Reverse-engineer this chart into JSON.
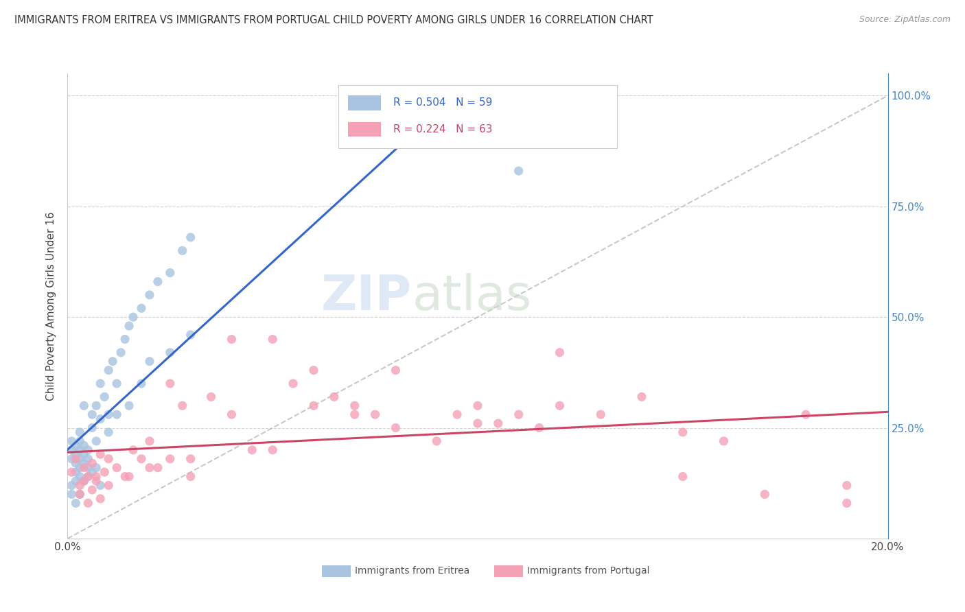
{
  "title": "IMMIGRANTS FROM ERITREA VS IMMIGRANTS FROM PORTUGAL CHILD POVERTY AMONG GIRLS UNDER 16 CORRELATION CHART",
  "source": "Source: ZipAtlas.com",
  "ylabel": "Child Poverty Among Girls Under 16",
  "xlim": [
    0.0,
    0.2
  ],
  "ylim": [
    0.0,
    1.05
  ],
  "background_color": "#ffffff",
  "grid_color": "#d0d0d0",
  "eritrea_color": "#a8c4e0",
  "eritrea_line_color": "#3366cc",
  "portugal_color": "#f4a0b5",
  "portugal_line_color": "#cc4466",
  "eritrea_R": 0.504,
  "eritrea_N": 59,
  "portugal_R": 0.224,
  "portugal_N": 63,
  "watermark_zip": "ZIP",
  "watermark_atlas": "atlas",
  "eritrea_x": [
    0.001,
    0.001,
    0.001,
    0.002,
    0.002,
    0.002,
    0.002,
    0.003,
    0.003,
    0.003,
    0.003,
    0.003,
    0.004,
    0.004,
    0.004,
    0.005,
    0.005,
    0.005,
    0.006,
    0.006,
    0.007,
    0.007,
    0.008,
    0.008,
    0.009,
    0.01,
    0.01,
    0.011,
    0.012,
    0.013,
    0.014,
    0.015,
    0.016,
    0.018,
    0.02,
    0.022,
    0.025,
    0.028,
    0.03,
    0.001,
    0.001,
    0.002,
    0.002,
    0.003,
    0.003,
    0.004,
    0.004,
    0.005,
    0.006,
    0.007,
    0.008,
    0.01,
    0.012,
    0.015,
    0.018,
    0.02,
    0.025,
    0.03,
    0.11
  ],
  "eritrea_y": [
    0.18,
    0.2,
    0.22,
    0.17,
    0.19,
    0.21,
    0.15,
    0.16,
    0.18,
    0.2,
    0.22,
    0.14,
    0.17,
    0.19,
    0.21,
    0.16,
    0.18,
    0.2,
    0.25,
    0.28,
    0.3,
    0.22,
    0.27,
    0.35,
    0.32,
    0.28,
    0.38,
    0.4,
    0.35,
    0.42,
    0.45,
    0.48,
    0.5,
    0.52,
    0.55,
    0.58,
    0.6,
    0.65,
    0.68,
    0.1,
    0.12,
    0.08,
    0.13,
    0.1,
    0.24,
    0.13,
    0.3,
    0.14,
    0.15,
    0.16,
    0.12,
    0.24,
    0.28,
    0.3,
    0.35,
    0.4,
    0.42,
    0.46,
    0.83
  ],
  "portugal_x": [
    0.001,
    0.002,
    0.003,
    0.004,
    0.005,
    0.006,
    0.007,
    0.008,
    0.009,
    0.01,
    0.012,
    0.014,
    0.016,
    0.018,
    0.02,
    0.022,
    0.025,
    0.028,
    0.03,
    0.035,
    0.04,
    0.045,
    0.05,
    0.055,
    0.06,
    0.065,
    0.07,
    0.075,
    0.08,
    0.09,
    0.095,
    0.1,
    0.105,
    0.11,
    0.115,
    0.12,
    0.13,
    0.14,
    0.15,
    0.16,
    0.17,
    0.18,
    0.19,
    0.003,
    0.004,
    0.005,
    0.006,
    0.007,
    0.008,
    0.01,
    0.015,
    0.02,
    0.025,
    0.03,
    0.04,
    0.05,
    0.06,
    0.07,
    0.08,
    0.1,
    0.12,
    0.15,
    0.19
  ],
  "portugal_y": [
    0.15,
    0.18,
    0.12,
    0.16,
    0.14,
    0.17,
    0.13,
    0.19,
    0.15,
    0.18,
    0.16,
    0.14,
    0.2,
    0.18,
    0.22,
    0.16,
    0.35,
    0.3,
    0.18,
    0.32,
    0.28,
    0.2,
    0.45,
    0.35,
    0.38,
    0.32,
    0.3,
    0.28,
    0.25,
    0.22,
    0.28,
    0.3,
    0.26,
    0.28,
    0.25,
    0.3,
    0.28,
    0.32,
    0.24,
    0.22,
    0.1,
    0.28,
    0.08,
    0.1,
    0.13,
    0.08,
    0.11,
    0.14,
    0.09,
    0.12,
    0.14,
    0.16,
    0.18,
    0.14,
    0.45,
    0.2,
    0.3,
    0.28,
    0.38,
    0.26,
    0.42,
    0.14,
    0.12
  ],
  "legend_R1": "R = 0.504",
  "legend_N1": "N = 59",
  "legend_R2": "R = 0.224",
  "legend_N2": "N = 63",
  "legend_label1": "Immigrants from Eritrea",
  "legend_label2": "Immigrants from Portugal"
}
